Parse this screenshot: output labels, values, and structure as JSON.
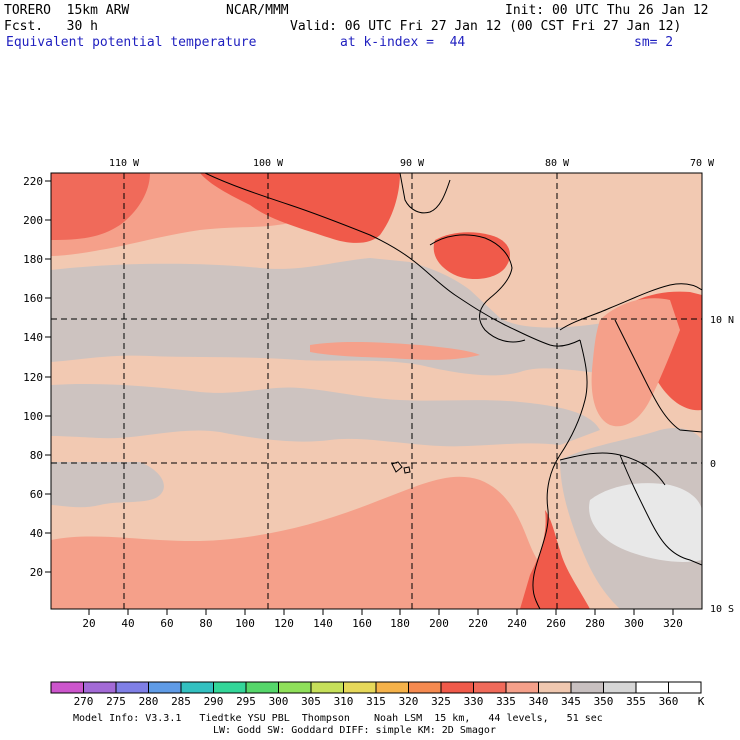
{
  "header": {
    "model": "TORERO  15km ARW",
    "org": "NCAR/MMM",
    "init": "Init: 00 UTC Thu 26 Jan 12",
    "fcst": "Fcst.   30 h",
    "valid": "Valid: 06 UTC Fri 27 Jan 12 (00 CST Fri 27 Jan 12)",
    "field": "Equivalent potential temperature",
    "level": "at k-index =  44",
    "smooth": "sm= 2"
  },
  "map": {
    "lon_labels": [
      "110 W",
      "100 W",
      "90 W",
      "80 W",
      "70 W"
    ],
    "lat_labels": [
      "10 N",
      "0",
      "10 S"
    ],
    "y_ticks": [
      "220",
      "200",
      "180",
      "160",
      "140",
      "120",
      "100",
      "80",
      "60",
      "40",
      "20"
    ],
    "x_ticks": [
      "20",
      "40",
      "60",
      "80",
      "100",
      "120",
      "140",
      "160",
      "180",
      "200",
      "220",
      "240",
      "260",
      "280",
      "300",
      "320"
    ]
  },
  "colorbar": {
    "unit": "K",
    "labels": [
      "270",
      "275",
      "280",
      "285",
      "290",
      "295",
      "300",
      "305",
      "310",
      "315",
      "320",
      "325",
      "330",
      "335",
      "340",
      "345",
      "350",
      "355",
      "360"
    ],
    "colors": [
      "#cc55cc",
      "#a36ad6",
      "#7f7fe6",
      "#5f9be6",
      "#33c0c0",
      "#33d699",
      "#55d66a",
      "#8fe05a",
      "#c6e05a",
      "#e6d85a",
      "#f5b24a",
      "#f58a50",
      "#f05a4a",
      "#f06a5a",
      "#f5a08a",
      "#f0c8b0",
      "#c8c0c0",
      "#d6d6d6",
      "#ffffff"
    ]
  },
  "footer": {
    "line1": "Model Info: V3.3.1   Tiedtke YSU PBL  Thompson    Noah LSM  15 km,   44 levels,   51 sec",
    "line2": "LW: Godd SW: Goddard DIFF: simple KM: 2D Smagor"
  }
}
